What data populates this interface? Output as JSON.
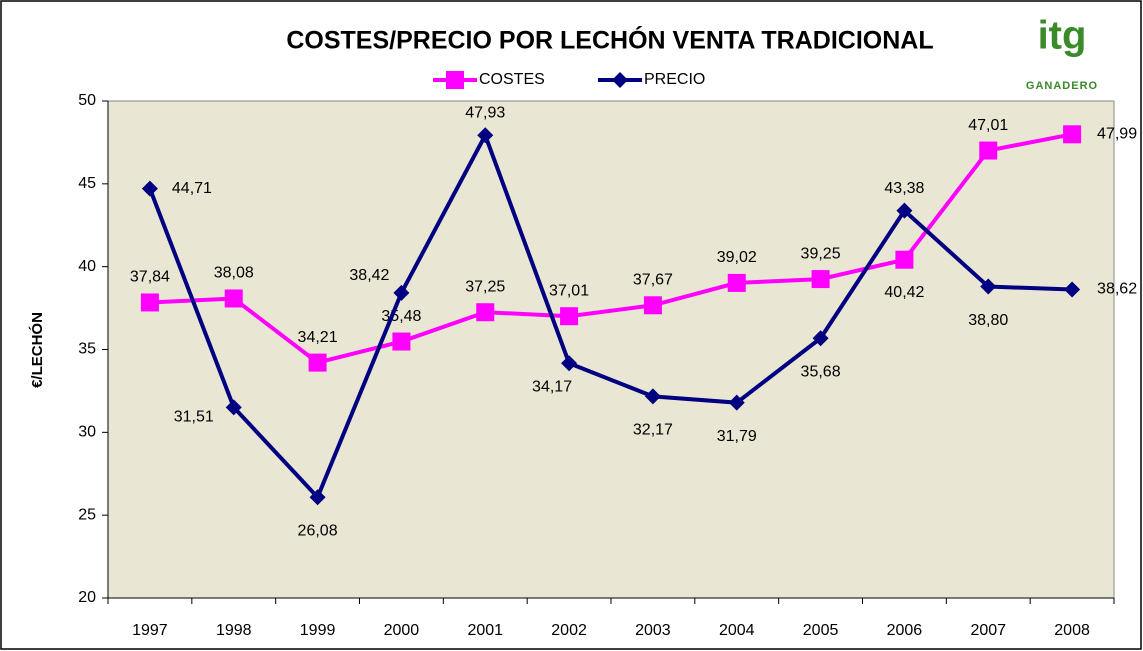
{
  "chart_data": {
    "type": "line",
    "title": "COSTES/PRECIO POR LECHÓN VENTA TRADICIONAL",
    "logo": {
      "mark": "itg",
      "text": "GANADERO"
    },
    "y_label": "€/LECHÓN",
    "categories": [
      "1997",
      "1998",
      "1999",
      "2000",
      "2001",
      "2002",
      "2003",
      "2004",
      "2005",
      "2006",
      "2007",
      "2008"
    ],
    "series": [
      {
        "name": "COSTES",
        "color": "#ff00ff",
        "marker": "square",
        "values": [
          37.84,
          38.08,
          34.21,
          35.48,
          37.25,
          37.01,
          37.67,
          39.02,
          39.25,
          40.42,
          47.01,
          47.99
        ],
        "value_labels": [
          "37,84",
          "38,08",
          "34,21",
          "35,48",
          "37,25",
          "37,01",
          "37,67",
          "39,02",
          "39,25",
          "40,42",
          "47,01",
          "47,99"
        ]
      },
      {
        "name": "PRECIO",
        "color": "#000080",
        "marker": "diamond",
        "values": [
          44.71,
          31.51,
          26.08,
          38.42,
          47.93,
          34.17,
          32.17,
          31.79,
          35.68,
          43.38,
          38.8,
          38.62
        ],
        "value_labels": [
          "44,71",
          "31,51",
          "26,08",
          "38,42",
          "47,93",
          "34,17",
          "32,17",
          "31,79",
          "35,68",
          "43,38",
          "38,80",
          "38,62"
        ]
      }
    ],
    "ylim": [
      20,
      50
    ],
    "yticks": [
      20,
      25,
      30,
      35,
      40,
      45,
      50
    ],
    "grid": false,
    "legend": "top"
  }
}
